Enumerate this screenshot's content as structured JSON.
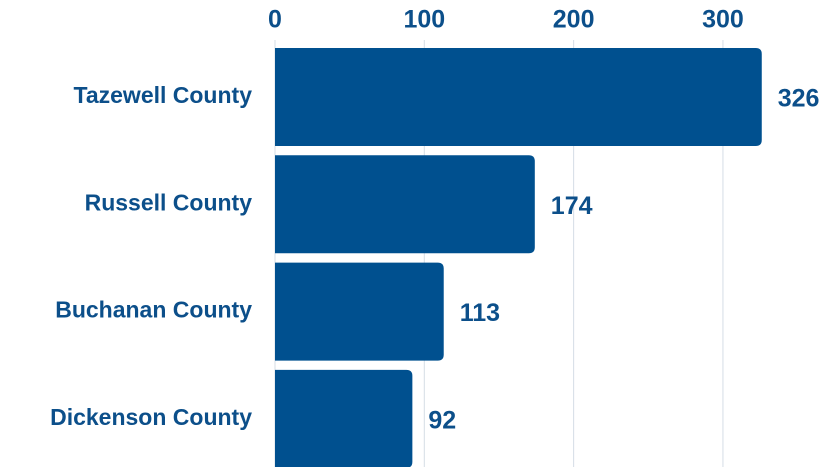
{
  "chart_data": {
    "type": "bar",
    "orientation": "horizontal",
    "categories": [
      "Tazewell County",
      "Russell County",
      "Buchanan County",
      "Dickenson County"
    ],
    "values": [
      326,
      174,
      113,
      92
    ],
    "color": "#00508f",
    "xlim": [
      0,
      350
    ],
    "xticks": [
      0,
      100,
      200,
      300
    ],
    "grid": true
  }
}
